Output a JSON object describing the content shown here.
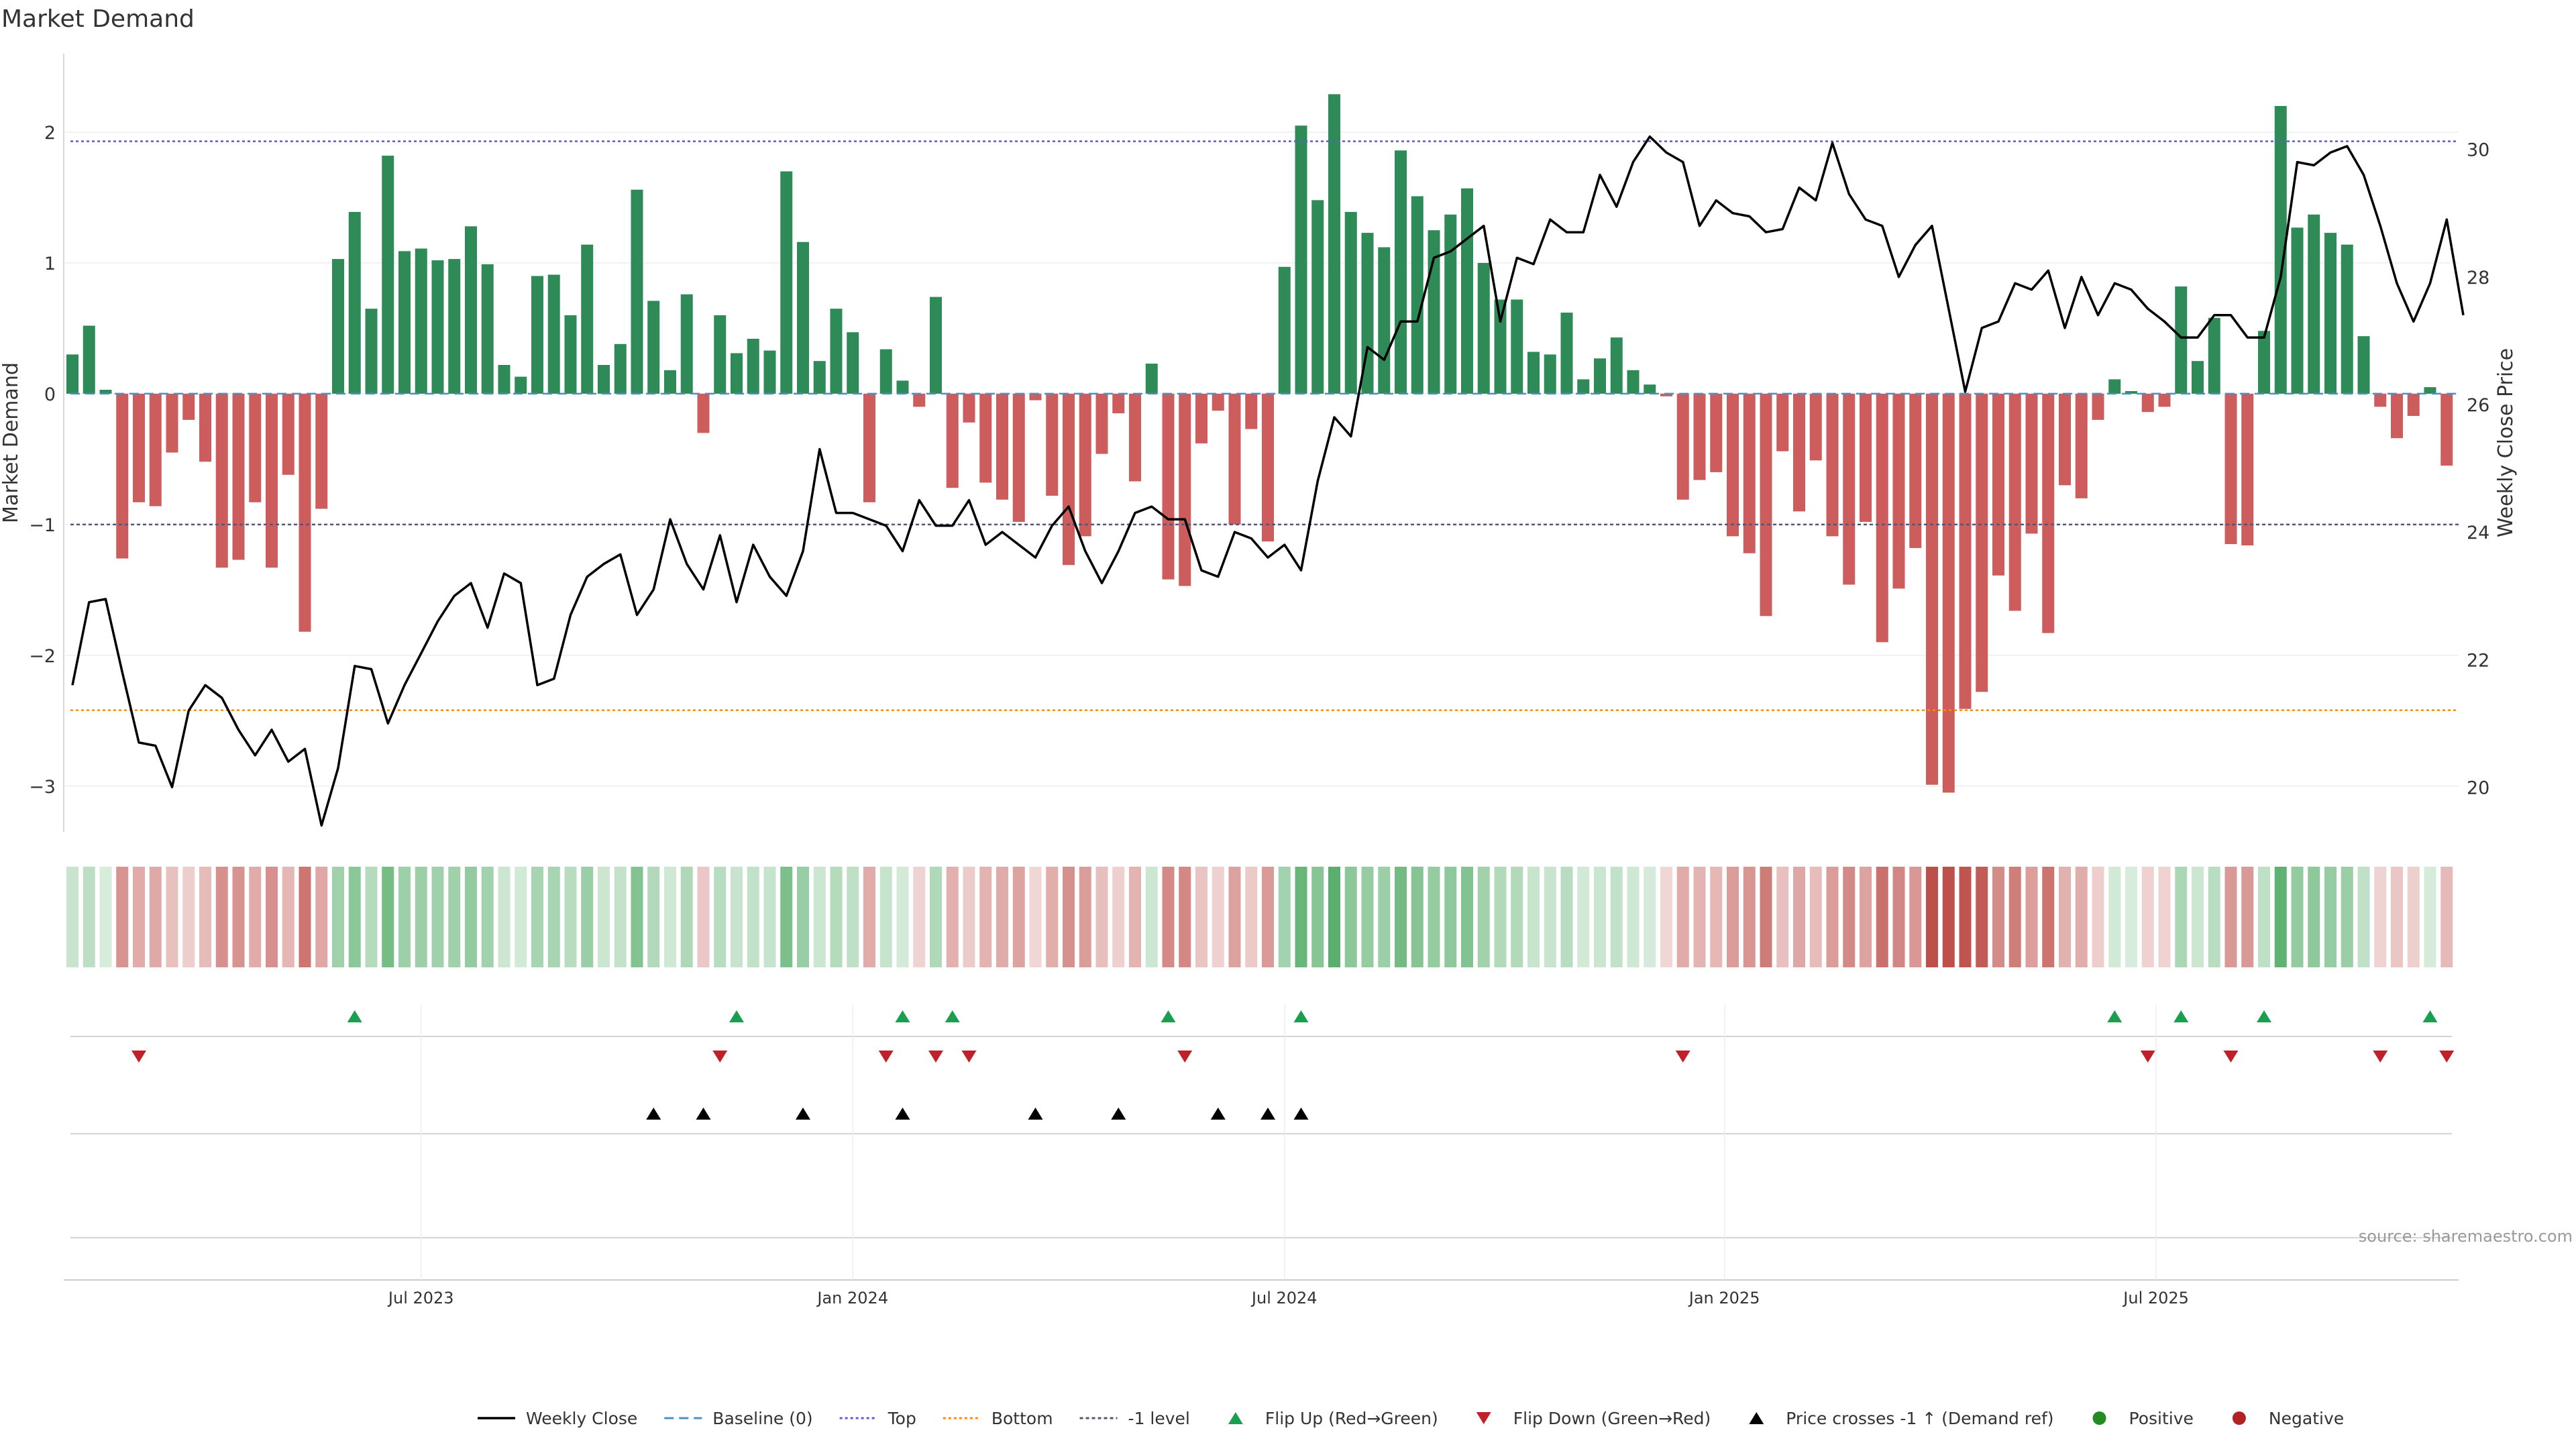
{
  "chart_data": {
    "type": "bar",
    "title": "Market Demand",
    "ylabel_left": "Market Demand",
    "ylabel_right": "Weekly Close Price",
    "left_ylim": [
      -3.35,
      2.6
    ],
    "left_yticks": [
      2,
      1,
      0,
      -1,
      -2,
      -3
    ],
    "right_ylim": [
      19.3,
      31.5
    ],
    "right_yticks": [
      30,
      28,
      26,
      24,
      22,
      20
    ],
    "reference_lines": {
      "top": 1.93,
      "bottom": -2.42,
      "minus_one": -1,
      "baseline": 0
    },
    "x_tick_labels": [
      {
        "label": "Jul 2023",
        "week": 21
      },
      {
        "label": "Jan 2024",
        "week": 47
      },
      {
        "label": "Jul 2024",
        "week": 73
      },
      {
        "label": "Jan 2025",
        "week": 99.5
      },
      {
        "label": "Jul 2025",
        "week": 125.5
      }
    ],
    "demand": [
      0.3,
      0.52,
      0.03,
      -1.26,
      -0.83,
      -0.86,
      -0.45,
      -0.2,
      -0.52,
      -1.33,
      -1.27,
      -0.83,
      -1.33,
      -0.62,
      -1.82,
      -0.88,
      1.03,
      1.39,
      0.65,
      1.82,
      1.09,
      1.11,
      1.02,
      1.03,
      1.28,
      0.99,
      0.22,
      0.13,
      0.9,
      0.91,
      0.6,
      1.14,
      0.22,
      0.38,
      1.56,
      0.71,
      0.18,
      0.76,
      -0.3,
      0.6,
      0.31,
      0.42,
      0.33,
      1.7,
      1.16,
      0.25,
      0.65,
      0.47,
      -0.83,
      0.34,
      0.1,
      -0.1,
      0.74,
      -0.72,
      -0.22,
      -0.68,
      -0.81,
      -0.98,
      -0.05,
      -0.78,
      -1.31,
      -1.09,
      -0.46,
      -0.15,
      -0.67,
      0.23,
      -1.42,
      -1.47,
      -0.38,
      -0.13,
      -1.0,
      -0.27,
      -1.13,
      0.97,
      2.05,
      1.48,
      2.29,
      1.39,
      1.23,
      1.12,
      1.86,
      1.51,
      1.25,
      1.37,
      1.57,
      1.0,
      0.72,
      0.72,
      0.32,
      0.3,
      0.62,
      0.11,
      0.27,
      0.43,
      0.18,
      0.07,
      -0.02,
      -0.81,
      -0.66,
      -0.6,
      -1.09,
      -1.22,
      -1.7,
      -0.44,
      -0.9,
      -0.51,
      -1.09,
      -1.46,
      -0.98,
      -1.9,
      -1.49,
      -1.18,
      -2.99,
      -3.05,
      -2.41,
      -2.28,
      -1.39,
      -1.66,
      -1.07,
      -1.83,
      -0.7,
      -0.8,
      -0.2,
      0.11,
      0.02,
      -0.14,
      -0.1,
      0.82,
      0.25,
      0.58,
      -1.15,
      -1.16,
      0.48,
      2.2,
      1.27,
      1.37,
      1.23,
      1.14,
      0.44,
      -0.1,
      -0.34,
      -0.17,
      0.05,
      -0.55
    ],
    "weekly_close": [
      21.6,
      22.9,
      22.95,
      21.8,
      20.7,
      20.65,
      20.0,
      21.2,
      21.6,
      21.4,
      20.9,
      20.5,
      20.9,
      20.4,
      20.6,
      19.4,
      20.3,
      21.9,
      21.85,
      21.0,
      21.6,
      22.1,
      22.6,
      23.0,
      23.2,
      22.5,
      23.35,
      23.2,
      21.6,
      21.7,
      22.7,
      23.3,
      23.5,
      23.65,
      22.7,
      23.1,
      24.2,
      23.5,
      23.1,
      23.95,
      22.9,
      23.8,
      23.3,
      23.0,
      23.7,
      25.3,
      24.3,
      24.3,
      24.2,
      24.1,
      23.7,
      24.5,
      24.1,
      24.1,
      24.5,
      23.8,
      24.0,
      23.8,
      23.6,
      24.1,
      24.4,
      23.7,
      23.2,
      23.7,
      24.3,
      24.4,
      24.2,
      24.2,
      23.4,
      23.3,
      24.0,
      23.9,
      23.6,
      23.8,
      23.4,
      24.8,
      25.8,
      25.5,
      26.9,
      26.7,
      27.3,
      27.3,
      28.3,
      28.4,
      28.6,
      28.8,
      27.3,
      28.3,
      28.2,
      28.9,
      28.7,
      28.7,
      29.6,
      29.1,
      29.8,
      30.2,
      29.95,
      29.8,
      28.8,
      29.2,
      29.0,
      28.95,
      28.7,
      28.75,
      29.4,
      29.2,
      30.1,
      29.3,
      28.9,
      28.8,
      28.0,
      28.5,
      28.8,
      27.5,
      26.2,
      27.2,
      27.3,
      27.9,
      27.8,
      28.1,
      27.2,
      28.0,
      27.4,
      27.9,
      27.8,
      27.5,
      27.3,
      27.05,
      27.05,
      27.4,
      27.4,
      27.05,
      27.05,
      28.0,
      29.8,
      29.75,
      29.95,
      30.05,
      29.6,
      28.8,
      27.9,
      27.3,
      27.9,
      28.9,
      27.4
    ],
    "heat_strip": {
      "rows": 1,
      "color_by": "demand"
    },
    "events": {
      "flip_up_weeks": [
        17,
        40,
        50,
        53,
        66,
        74,
        123,
        127,
        132,
        142
      ],
      "flip_down_weeks": [
        4,
        39,
        49,
        52,
        54,
        67,
        97,
        125,
        130,
        139,
        143
      ],
      "price_cross_weeks": [
        35,
        38,
        44,
        50,
        58,
        63,
        69,
        72,
        74
      ]
    },
    "colors": {
      "positive": "#2e8b57",
      "negative": "#cd5c5c",
      "line": "#000000",
      "top_line": "#5c5cd6",
      "bottom_line": "#ff8c00",
      "minus_one_line": "#555577",
      "baseline": "#4a90c2",
      "flip_up": "#1a9e50",
      "flip_down": "#c0202a",
      "cross": "#000000",
      "positive_dot": "#228b22",
      "negative_dot": "#b22222"
    },
    "legend": [
      {
        "label": "Weekly Close",
        "symbol": "line"
      },
      {
        "label": "Baseline (0)",
        "symbol": "dash-blue"
      },
      {
        "label": "Top",
        "symbol": "dot-purple"
      },
      {
        "label": "Bottom",
        "symbol": "dot-orange"
      },
      {
        "label": "-1 level",
        "symbol": "dot-gray"
      },
      {
        "label": "Flip Up (Red→Green)",
        "symbol": "tri-up-green"
      },
      {
        "label": "Flip Down (Green→Red)",
        "symbol": "tri-down-red"
      },
      {
        "label": "Price crosses -1 ↑ (Demand ref)",
        "symbol": "tri-up-black"
      },
      {
        "label": "Positive",
        "symbol": "dot-green"
      },
      {
        "label": "Negative",
        "symbol": "dot-red"
      }
    ],
    "source": "source: sharemaestro.com"
  }
}
